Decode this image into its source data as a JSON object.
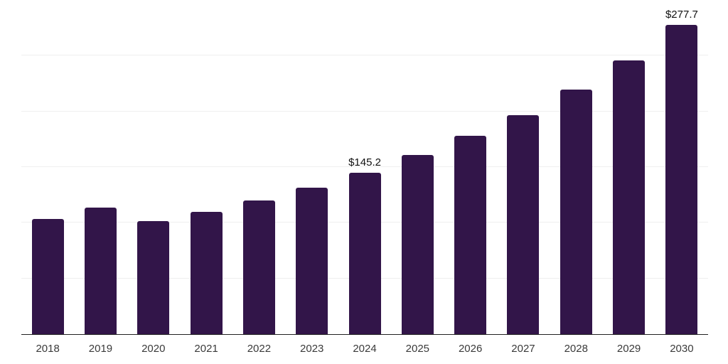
{
  "chart_data": {
    "type": "bar",
    "title": "",
    "xlabel": "",
    "ylabel": "",
    "categories": [
      "2018",
      "2019",
      "2020",
      "2021",
      "2022",
      "2023",
      "2024",
      "2025",
      "2026",
      "2027",
      "2028",
      "2029",
      "2030"
    ],
    "values": [
      103.1,
      113.7,
      101.4,
      109.5,
      120.1,
      131.4,
      145.2,
      160.7,
      178.0,
      196.3,
      219.6,
      245.6,
      277.7
    ],
    "data_labels": {
      "2024": "$145.2",
      "2030": "$277.7"
    },
    "ylim": [
      0,
      300
    ],
    "grid": true,
    "gridline_values": [
      50,
      100,
      150,
      200,
      250,
      300
    ],
    "y_tick_labels_visible": false,
    "legend": false,
    "colors": {
      "bar": "#321549",
      "grid": "#efefef",
      "axis": "#222222",
      "tick_label": "#3a3a3a",
      "data_label": "#111111"
    }
  }
}
